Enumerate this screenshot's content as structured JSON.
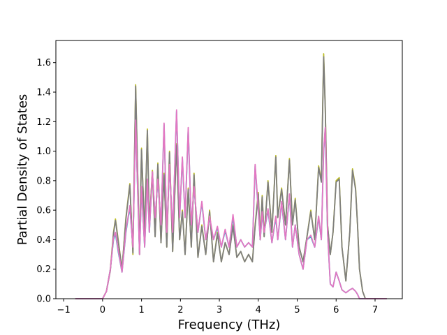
{
  "chart_data": {
    "type": "line",
    "title": "",
    "xlabel": "Frequency (THz)",
    "ylabel": "Partial Density of States",
    "xlim": [
      -1.2,
      7.7
    ],
    "ylim": [
      0.0,
      1.75
    ],
    "xticks": [
      -1,
      0,
      1,
      2,
      3,
      4,
      5,
      6,
      7
    ],
    "yticks": [
      0.0,
      0.2,
      0.4,
      0.6,
      0.8,
      1.0,
      1.2,
      1.4,
      1.6
    ],
    "xtick_labels": [
      "−1",
      "0",
      "1",
      "2",
      "3",
      "4",
      "5",
      "6",
      "7"
    ],
    "ytick_labels": [
      "0.0",
      "0.2",
      "0.4",
      "0.6",
      "0.8",
      "1.0",
      "1.2",
      "1.4",
      "1.6"
    ],
    "grid": false,
    "legend": "none",
    "series": [
      {
        "color": "#bcbd22",
        "x": [
          -0.7,
          0.0,
          0.1,
          0.2,
          0.28,
          0.33,
          0.4,
          0.5,
          0.6,
          0.7,
          0.78,
          0.85,
          0.95,
          1.0,
          1.08,
          1.15,
          1.2,
          1.28,
          1.35,
          1.42,
          1.5,
          1.58,
          1.65,
          1.72,
          1.8,
          1.9,
          1.98,
          2.05,
          2.12,
          2.2,
          2.28,
          2.35,
          2.45,
          2.55,
          2.65,
          2.75,
          2.85,
          2.95,
          3.05,
          3.15,
          3.25,
          3.35,
          3.45,
          3.55,
          3.65,
          3.75,
          3.85,
          3.92,
          4.0,
          4.05,
          4.1,
          4.15,
          4.25,
          4.35,
          4.45,
          4.5,
          4.6,
          4.7,
          4.8,
          4.88,
          4.95,
          5.05,
          5.15,
          5.25,
          5.35,
          5.45,
          5.55,
          5.62,
          5.68,
          5.72,
          5.78,
          5.85,
          5.92,
          6.0,
          6.08,
          6.15,
          6.25,
          6.35,
          6.42,
          6.5,
          6.55,
          6.6,
          6.68,
          6.75,
          7.3
        ],
        "y": [
          0.0,
          0.0,
          0.05,
          0.2,
          0.45,
          0.54,
          0.4,
          0.2,
          0.55,
          0.78,
          0.3,
          1.45,
          0.3,
          1.02,
          0.45,
          1.15,
          0.5,
          0.87,
          0.42,
          0.92,
          0.38,
          0.85,
          0.35,
          1.0,
          0.32,
          1.05,
          0.4,
          0.6,
          0.3,
          0.75,
          0.35,
          0.85,
          0.28,
          0.5,
          0.3,
          0.6,
          0.25,
          0.45,
          0.25,
          0.38,
          0.3,
          0.5,
          0.28,
          0.32,
          0.25,
          0.3,
          0.25,
          0.5,
          0.72,
          0.4,
          0.7,
          0.42,
          0.8,
          0.45,
          0.97,
          0.55,
          0.75,
          0.5,
          0.95,
          0.5,
          0.68,
          0.35,
          0.25,
          0.42,
          0.6,
          0.4,
          0.9,
          0.8,
          1.66,
          1.3,
          0.5,
          0.3,
          0.45,
          0.8,
          0.82,
          0.35,
          0.12,
          0.45,
          0.88,
          0.75,
          0.5,
          0.2,
          0.05,
          0.0,
          0.0
        ]
      },
      {
        "color": "#17becf",
        "x": [
          -0.7,
          0.0,
          0.1,
          0.2,
          0.28,
          0.33,
          0.4,
          0.5,
          0.6,
          0.7,
          0.78,
          0.85,
          0.95,
          1.0,
          1.08,
          1.15,
          1.2,
          1.28,
          1.35,
          1.42,
          1.5,
          1.58,
          1.65,
          1.72,
          1.8,
          1.9,
          1.98,
          2.05,
          2.12,
          2.2,
          2.28,
          2.35,
          2.45,
          2.55,
          2.65,
          2.75,
          2.85,
          2.95,
          3.05,
          3.15,
          3.25,
          3.35,
          3.45,
          3.55,
          3.65,
          3.75,
          3.85,
          3.92,
          4.0,
          4.05,
          4.1,
          4.15,
          4.25,
          4.35,
          4.45,
          4.5,
          4.6,
          4.7,
          4.8,
          4.88,
          4.95,
          5.05,
          5.15,
          5.25,
          5.35,
          5.45,
          5.55,
          5.62,
          5.68,
          5.72,
          5.78,
          5.85,
          5.92,
          6.0,
          6.08,
          6.15,
          6.25,
          6.35,
          6.42,
          6.5,
          6.55,
          6.6,
          6.68,
          6.75,
          7.3
        ],
        "y": [
          0.0,
          0.0,
          0.05,
          0.2,
          0.4,
          0.44,
          0.32,
          0.18,
          0.45,
          0.62,
          0.35,
          1.2,
          0.3,
          0.75,
          0.35,
          0.8,
          0.45,
          0.85,
          0.55,
          0.8,
          0.5,
          1.18,
          0.45,
          0.9,
          0.45,
          1.27,
          0.55,
          0.95,
          0.55,
          1.15,
          0.5,
          0.75,
          0.45,
          0.65,
          0.4,
          0.55,
          0.4,
          0.48,
          0.35,
          0.46,
          0.35,
          0.55,
          0.35,
          0.4,
          0.35,
          0.38,
          0.35,
          0.9,
          0.6,
          0.4,
          0.58,
          0.45,
          0.6,
          0.38,
          0.55,
          0.4,
          0.65,
          0.4,
          0.7,
          0.35,
          0.5,
          0.3,
          0.2,
          0.4,
          0.42,
          0.35,
          0.55,
          0.4,
          1.0,
          1.15,
          0.45,
          0.1,
          0.08,
          0.18,
          0.12,
          0.06,
          0.04,
          0.06,
          0.07,
          0.05,
          0.03,
          0.0,
          0.0,
          0.0,
          0.0
        ]
      },
      {
        "color": "#7f7f7f",
        "x": [
          -0.7,
          0.0,
          0.1,
          0.2,
          0.28,
          0.33,
          0.4,
          0.5,
          0.6,
          0.7,
          0.78,
          0.85,
          0.95,
          1.0,
          1.08,
          1.15,
          1.2,
          1.28,
          1.35,
          1.42,
          1.5,
          1.58,
          1.65,
          1.72,
          1.8,
          1.9,
          1.98,
          2.05,
          2.12,
          2.2,
          2.28,
          2.35,
          2.45,
          2.55,
          2.65,
          2.75,
          2.85,
          2.95,
          3.05,
          3.15,
          3.25,
          3.35,
          3.45,
          3.55,
          3.65,
          3.75,
          3.85,
          3.92,
          4.0,
          4.05,
          4.1,
          4.15,
          4.25,
          4.35,
          4.45,
          4.5,
          4.6,
          4.7,
          4.8,
          4.88,
          4.95,
          5.05,
          5.15,
          5.25,
          5.35,
          5.45,
          5.55,
          5.62,
          5.68,
          5.72,
          5.78,
          5.85,
          5.92,
          6.0,
          6.08,
          6.15,
          6.25,
          6.35,
          6.42,
          6.5,
          6.55,
          6.6,
          6.68,
          6.75,
          7.3
        ],
        "y": [
          0.0,
          0.0,
          0.05,
          0.19,
          0.44,
          0.53,
          0.39,
          0.2,
          0.54,
          0.77,
          0.31,
          1.44,
          0.3,
          1.01,
          0.45,
          1.14,
          0.5,
          0.86,
          0.42,
          0.91,
          0.38,
          0.84,
          0.35,
          0.99,
          0.32,
          1.04,
          0.4,
          0.59,
          0.3,
          0.74,
          0.35,
          0.84,
          0.28,
          0.49,
          0.3,
          0.59,
          0.25,
          0.44,
          0.25,
          0.38,
          0.3,
          0.49,
          0.28,
          0.32,
          0.25,
          0.3,
          0.25,
          0.49,
          0.71,
          0.4,
          0.69,
          0.42,
          0.79,
          0.45,
          0.96,
          0.55,
          0.74,
          0.5,
          0.94,
          0.5,
          0.67,
          0.35,
          0.25,
          0.42,
          0.59,
          0.4,
          0.89,
          0.79,
          1.64,
          1.29,
          0.5,
          0.3,
          0.45,
          0.79,
          0.81,
          0.35,
          0.12,
          0.45,
          0.87,
          0.74,
          0.5,
          0.2,
          0.05,
          0.0,
          0.0
        ]
      },
      {
        "color": "#e377c2",
        "x": [
          -0.7,
          0.0,
          0.1,
          0.2,
          0.28,
          0.33,
          0.4,
          0.5,
          0.6,
          0.7,
          0.78,
          0.85,
          0.95,
          1.0,
          1.08,
          1.15,
          1.2,
          1.28,
          1.35,
          1.42,
          1.5,
          1.58,
          1.65,
          1.72,
          1.8,
          1.9,
          1.98,
          2.05,
          2.12,
          2.2,
          2.28,
          2.35,
          2.45,
          2.55,
          2.65,
          2.75,
          2.85,
          2.95,
          3.05,
          3.15,
          3.25,
          3.35,
          3.45,
          3.55,
          3.65,
          3.75,
          3.85,
          3.92,
          4.0,
          4.05,
          4.1,
          4.15,
          4.25,
          4.35,
          4.45,
          4.5,
          4.6,
          4.7,
          4.8,
          4.88,
          4.95,
          5.05,
          5.15,
          5.25,
          5.35,
          5.45,
          5.55,
          5.62,
          5.68,
          5.72,
          5.78,
          5.85,
          5.92,
          6.0,
          6.08,
          6.15,
          6.25,
          6.35,
          6.42,
          6.5,
          6.55,
          6.6,
          6.68,
          6.75,
          7.3
        ],
        "y": [
          0.0,
          0.0,
          0.05,
          0.2,
          0.41,
          0.45,
          0.33,
          0.18,
          0.46,
          0.63,
          0.35,
          1.21,
          0.3,
          0.76,
          0.35,
          0.81,
          0.45,
          0.86,
          0.55,
          0.81,
          0.5,
          1.19,
          0.45,
          0.91,
          0.45,
          1.28,
          0.55,
          0.96,
          0.55,
          1.16,
          0.5,
          0.76,
          0.45,
          0.66,
          0.4,
          0.56,
          0.4,
          0.49,
          0.35,
          0.47,
          0.35,
          0.57,
          0.35,
          0.4,
          0.35,
          0.38,
          0.35,
          0.91,
          0.61,
          0.4,
          0.59,
          0.45,
          0.61,
          0.38,
          0.56,
          0.4,
          0.66,
          0.4,
          0.71,
          0.35,
          0.5,
          0.3,
          0.2,
          0.4,
          0.43,
          0.35,
          0.56,
          0.4,
          1.01,
          1.16,
          0.45,
          0.1,
          0.08,
          0.18,
          0.12,
          0.06,
          0.04,
          0.06,
          0.07,
          0.05,
          0.03,
          0.0,
          0.0,
          0.0,
          0.0
        ]
      }
    ]
  }
}
